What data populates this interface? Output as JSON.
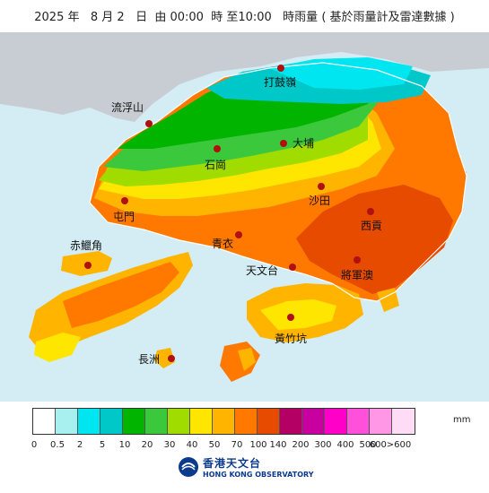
{
  "header": {
    "title": "2025 年   8 月 2   日  由 00:00  時 至10:00   時雨量 ( 基於雨量計及雷達數據 )"
  },
  "places": [
    {
      "id": "tate-cairn",
      "label": "打鼓嶺"
    },
    {
      "id": "lau-fau-shan",
      "label": "流浮山"
    },
    {
      "id": "tai-po",
      "label": "大埔"
    },
    {
      "id": "shek-kong",
      "label": "石崗"
    },
    {
      "id": "sha-tin",
      "label": "沙田"
    },
    {
      "id": "tuen-mun",
      "label": "屯門"
    },
    {
      "id": "sai-kung",
      "label": "西貢"
    },
    {
      "id": "tsing-yi",
      "label": "青衣"
    },
    {
      "id": "chek-lap-kok",
      "label": "赤鱲角"
    },
    {
      "id": "tsim-sha-tsui",
      "label": "天文台"
    },
    {
      "id": "tseung-kwan-o",
      "label": "將軍澳"
    },
    {
      "id": "wong-chuk-hang",
      "label": "黃竹坑"
    },
    {
      "id": "cheung-chau",
      "label": "長洲"
    }
  ],
  "legend": {
    "unit": "mm",
    "colors": [
      "#ffffff",
      "#a8f0f0",
      "#00e6f0",
      "#00c8c8",
      "#00b400",
      "#3cc83c",
      "#a0dc00",
      "#ffe600",
      "#ffb400",
      "#ff7800",
      "#e64b00",
      "#b40064",
      "#c800a0",
      "#ff00c8",
      "#ff50dc",
      "#ff96e6",
      "#ffdcf5"
    ],
    "ticks": [
      "0",
      "0.5",
      "2",
      "5",
      "10",
      "20",
      "30",
      "40",
      "50",
      "70",
      "100",
      "140",
      "200",
      "300",
      "400",
      "500",
      "600>600"
    ]
  },
  "logo": {
    "name_zh": "香港天文台",
    "name_en": "HONG KONG OBSERVATORY"
  },
  "colors": {
    "sea": "#d4ecf4",
    "mainland": "#c8cdd3",
    "dot": "#b01010"
  }
}
